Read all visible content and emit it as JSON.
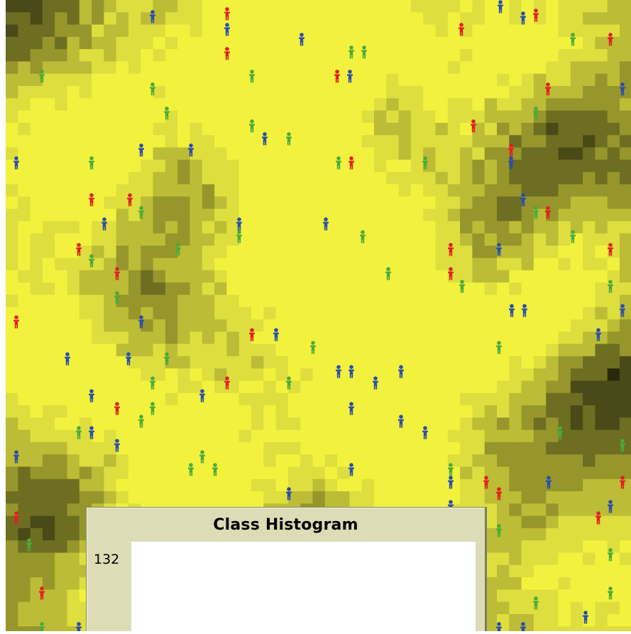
{
  "view": {
    "background_palette": [
      "#2a2a0a",
      "#4a4a18",
      "#6e6e22",
      "#96962c",
      "#bcbc36",
      "#dede3e",
      "#f2f23e"
    ],
    "turtle_colors": {
      "red": "#e02020",
      "green": "#4aaa3a",
      "blue": "#2a4ea8"
    },
    "turtle_shape": "person-icon"
  },
  "histogram": {
    "title": "Class Histogram",
    "y_max_label": "132"
  }
}
